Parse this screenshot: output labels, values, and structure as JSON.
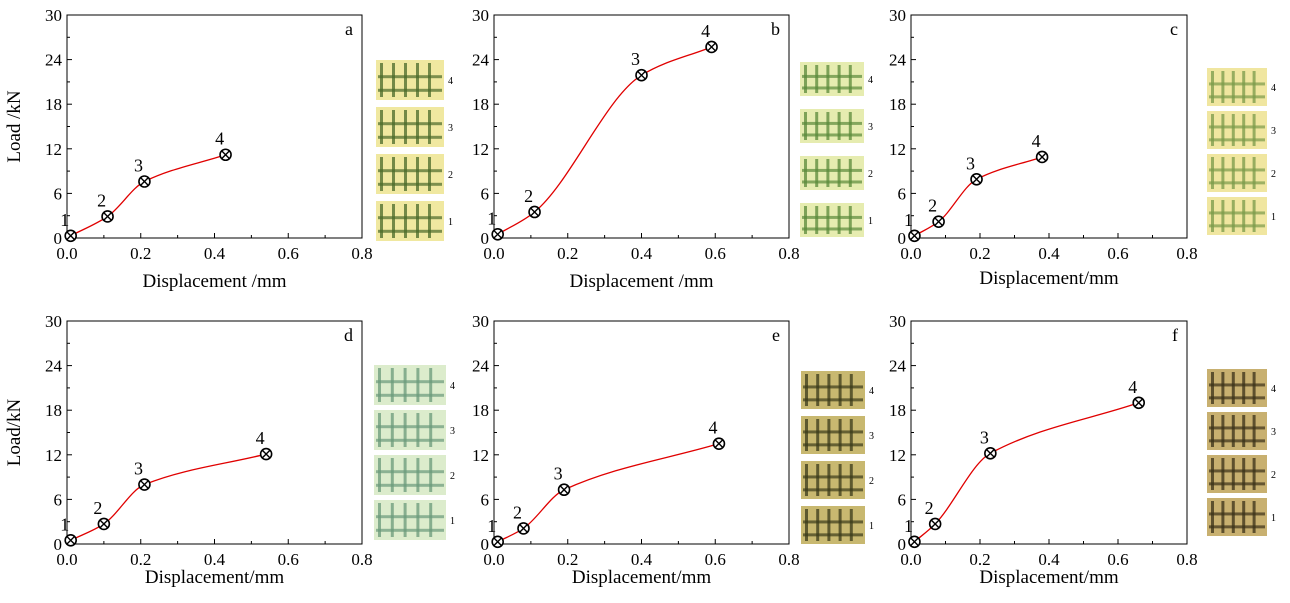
{
  "chart_data": [
    {
      "type": "line",
      "panel_label": "a",
      "xlabel": "Displacement /mm",
      "ylabel": "Load /kN",
      "xlim": [
        0,
        0.8
      ],
      "ylim": [
        0,
        30
      ],
      "xticks": [
        "0.0",
        "0.2",
        "0.4",
        "0.6",
        "0.8"
      ],
      "yticks": [
        "0",
        "6",
        "12",
        "18",
        "24",
        "30"
      ],
      "series": [
        {
          "values": [
            {
              "x": 0.01,
              "y": 0.3,
              "label": "1"
            },
            {
              "x": 0.11,
              "y": 2.9,
              "label": "2"
            },
            {
              "x": 0.21,
              "y": 7.6,
              "label": "3"
            },
            {
              "x": 0.43,
              "y": 11.2,
              "label": "4"
            }
          ]
        }
      ],
      "inset_labels": [
        "4",
        "3",
        "2",
        "1"
      ],
      "colors": {
        "curve": "#e00000",
        "inset_light": "#f0e8a0",
        "inset_dark": "#4a6a2a"
      }
    },
    {
      "type": "line",
      "panel_label": "b",
      "xlabel": "Displacement /mm",
      "ylabel": "",
      "xlim": [
        0,
        0.8
      ],
      "ylim": [
        0,
        30
      ],
      "xticks": [
        "0.0",
        "0.2",
        "0.4",
        "0.6",
        "0.8"
      ],
      "yticks": [
        "0",
        "6",
        "12",
        "18",
        "24",
        "30"
      ],
      "series": [
        {
          "values": [
            {
              "x": 0.01,
              "y": 0.5,
              "label": "1"
            },
            {
              "x": 0.11,
              "y": 3.5,
              "label": "2"
            },
            {
              "x": 0.4,
              "y": 21.9,
              "label": "3"
            },
            {
              "x": 0.59,
              "y": 25.7,
              "label": "4"
            }
          ]
        }
      ],
      "inset_labels": [
        "4",
        "3",
        "2",
        "1"
      ],
      "colors": {
        "curve": "#e00000",
        "inset_light": "#e6ecb0",
        "inset_dark": "#5a8a3a"
      }
    },
    {
      "type": "line",
      "panel_label": "c",
      "xlabel": "Displacement/mm",
      "ylabel": "",
      "xlim": [
        0,
        0.8
      ],
      "ylim": [
        0,
        30
      ],
      "xticks": [
        "0.0",
        "0.2",
        "0.4",
        "0.6",
        "0.8"
      ],
      "yticks": [
        "0",
        "6",
        "12",
        "18",
        "24",
        "30"
      ],
      "series": [
        {
          "values": [
            {
              "x": 0.01,
              "y": 0.3,
              "label": "1"
            },
            {
              "x": 0.08,
              "y": 2.2,
              "label": "2"
            },
            {
              "x": 0.19,
              "y": 7.9,
              "label": "3"
            },
            {
              "x": 0.38,
              "y": 10.9,
              "label": "4"
            }
          ]
        }
      ],
      "inset_labels": [
        "4",
        "3",
        "2",
        "1"
      ],
      "colors": {
        "curve": "#e00000",
        "inset_light": "#f0e6a0",
        "inset_dark": "#7a9a4a"
      }
    },
    {
      "type": "line",
      "panel_label": "d",
      "xlabel": "Displacement/mm",
      "ylabel": "Load/kN",
      "xlim": [
        0,
        0.8
      ],
      "ylim": [
        0,
        30
      ],
      "xticks": [
        "0.0",
        "0.2",
        "0.4",
        "0.6",
        "0.8"
      ],
      "yticks": [
        "0",
        "6",
        "12",
        "18",
        "24",
        "30"
      ],
      "series": [
        {
          "values": [
            {
              "x": 0.01,
              "y": 0.5,
              "label": "1"
            },
            {
              "x": 0.1,
              "y": 2.7,
              "label": "2"
            },
            {
              "x": 0.21,
              "y": 8.0,
              "label": "3"
            },
            {
              "x": 0.54,
              "y": 12.1,
              "label": "4"
            }
          ]
        }
      ],
      "inset_labels": [
        "4",
        "3",
        "2",
        "1"
      ],
      "colors": {
        "curve": "#e00000",
        "inset_light": "#dceccc",
        "inset_dark": "#6a9a7a"
      }
    },
    {
      "type": "line",
      "panel_label": "e",
      "xlabel": "Displacement/mm",
      "ylabel": "",
      "xlim": [
        0,
        0.8
      ],
      "ylim": [
        0,
        30
      ],
      "xticks": [
        "0.0",
        "0.2",
        "0.4",
        "0.6",
        "0.8"
      ],
      "yticks": [
        "0",
        "6",
        "12",
        "18",
        "24",
        "30"
      ],
      "series": [
        {
          "values": [
            {
              "x": 0.01,
              "y": 0.3,
              "label": "1"
            },
            {
              "x": 0.08,
              "y": 2.1,
              "label": "2"
            },
            {
              "x": 0.19,
              "y": 7.3,
              "label": "3"
            },
            {
              "x": 0.61,
              "y": 13.5,
              "label": "4"
            }
          ]
        }
      ],
      "inset_labels": [
        "4",
        "3",
        "2",
        "1"
      ],
      "colors": {
        "curve": "#e00000",
        "inset_light": "#c8b870",
        "inset_dark": "#3a3a1a"
      }
    },
    {
      "type": "line",
      "panel_label": "f",
      "xlabel": "Displacement/mm",
      "ylabel": "",
      "xlim": [
        0,
        0.8
      ],
      "ylim": [
        0,
        30
      ],
      "xticks": [
        "0.0",
        "0.2",
        "0.4",
        "0.6",
        "0.8"
      ],
      "yticks": [
        "0",
        "6",
        "12",
        "18",
        "24",
        "30"
      ],
      "series": [
        {
          "values": [
            {
              "x": 0.01,
              "y": 0.3,
              "label": "1"
            },
            {
              "x": 0.07,
              "y": 2.7,
              "label": "2"
            },
            {
              "x": 0.23,
              "y": 12.2,
              "label": "3"
            },
            {
              "x": 0.66,
              "y": 19.0,
              "label": "4"
            }
          ]
        }
      ],
      "inset_labels": [
        "4",
        "3",
        "2",
        "1"
      ],
      "colors": {
        "curve": "#e00000",
        "inset_light": "#c8b070",
        "inset_dark": "#3a3018"
      }
    }
  ]
}
